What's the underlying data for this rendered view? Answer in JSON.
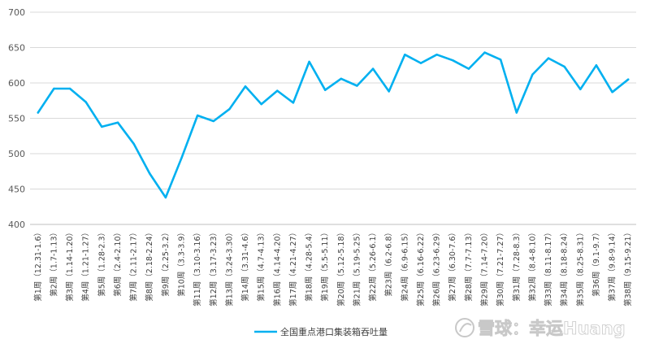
{
  "chart_data": {
    "type": "line",
    "title": "",
    "xlabel": "",
    "ylabel": "",
    "ylim": [
      400,
      700
    ],
    "yticks": [
      400,
      450,
      500,
      550,
      600,
      650,
      700
    ],
    "grid": true,
    "legend_position": "bottom",
    "line_color": "#00b0f0",
    "categories": [
      "第1周（12.31-1.6）",
      "第2周（1.7-1.13）",
      "第3周（1.14-1.20）",
      "第4周（1.21-1.27）",
      "第5周（1.28-2.3）",
      "第6周（2.4-2.10）",
      "第7周（2.11-2.17）",
      "第8周（2.18-2.24）",
      "第9周（2.25-3.2）",
      "第10周（3.3-3.9）",
      "第11周（3.10-3.16）",
      "第12周（3.17-3.23）",
      "第13周（3.24-3.30）",
      "第14周（3.31-4.6）",
      "第15周（4.7-4.13）",
      "第16周（4.14-4.20）",
      "第17周（4.21-4.27）",
      "第18周（4.28-5.4）",
      "第19周（5.5-5.11）",
      "第20周（5.12-5.18）",
      "第21周（5.19-5.25）",
      "第22周（5.26-6.1）",
      "第23周（6.2-6.8）",
      "第24周（6.9-6.15）",
      "第25周（6.16-6.22）",
      "第26周（6.23-6.29）",
      "第27周（6.30-7.6）",
      "第28周（7.7-7.13）",
      "第29周（7.14-7.20）",
      "第30周（7.21-7.27）",
      "第31周（7.28-8.3）",
      "第32周（8.4-8.10）",
      "第33周（8.11-8.17）",
      "第34周（8.18-8.24）",
      "第35周（8.25-8.31）",
      "第36周（9.1-9.7）",
      "第37周（9.8-9.14）",
      "第38周（9.15-9.21）"
    ],
    "series": [
      {
        "name": "全国重点港口集装箱吞吐量",
        "values": [
          558,
          592,
          592,
          573,
          538,
          544,
          514,
          472,
          438,
          494,
          554,
          546,
          563,
          595,
          570,
          589,
          572,
          630,
          590,
          606,
          596,
          620,
          588,
          640,
          628,
          640,
          632,
          620,
          643,
          633,
          558,
          612,
          635,
          623,
          591,
          625,
          587,
          605
        ]
      }
    ]
  },
  "watermark": "雪球：幸运Huang"
}
